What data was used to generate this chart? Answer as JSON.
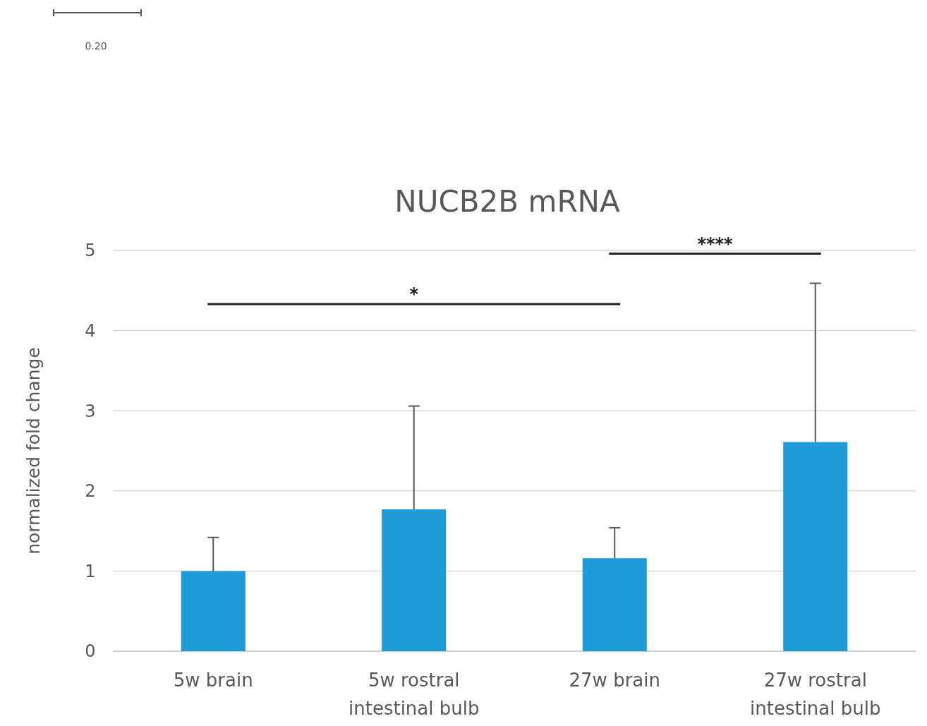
{
  "chart_data": {
    "type": "bar",
    "title": "NUCB2B mRNA",
    "ylabel": "normalized fold change",
    "categories": [
      "5w brain",
      "5w rostral intestinal bulb",
      "27w brain",
      "27w rostral intestinal bulb"
    ],
    "values": [
      1.0,
      1.77,
      1.16,
      2.61
    ],
    "errors": [
      [
        1.0,
        1.42
      ],
      [
        1.77,
        3.06
      ],
      [
        1.16,
        1.54
      ],
      [
        2.61,
        4.59
      ]
    ],
    "color": "#1f9bd7",
    "ylim": [
      0,
      5
    ],
    "yticks": [
      0,
      1,
      2,
      3,
      4,
      5
    ],
    "grid": "y",
    "annotations": [
      "*",
      "****",
      "0.20"
    ]
  }
}
